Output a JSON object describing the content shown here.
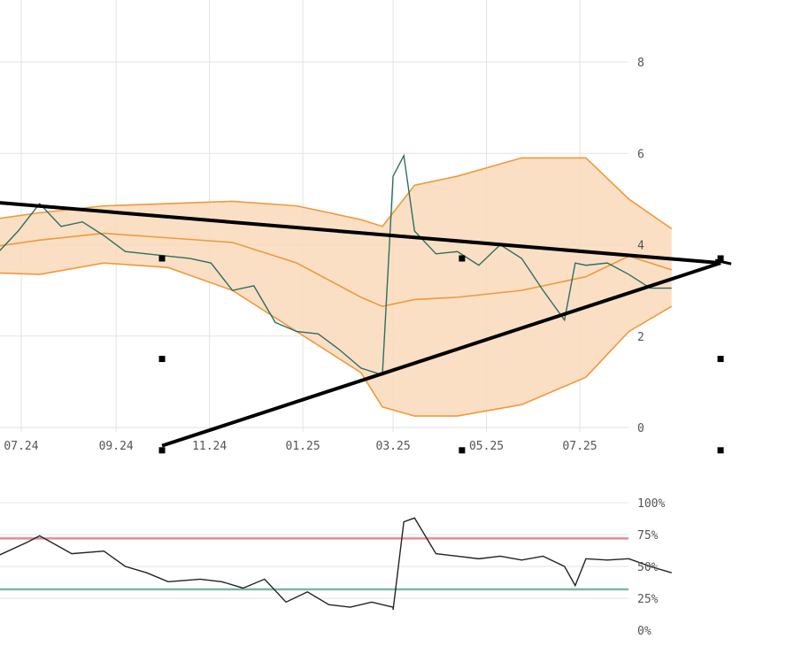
{
  "colors": {
    "grid": "#e3e3e3",
    "band_fill": "#f9d9bb",
    "band_line": "#ee9a3a",
    "price_line": "#2e6e62",
    "trend_line": "#000000",
    "osc_line": "#222222",
    "overbought_line": "#e58c8c",
    "oversold_line": "#7fb7a3",
    "handle": "#000000",
    "axis_text": "#555555"
  },
  "chart_data": [
    {
      "type": "line",
      "x_ticks": [
        "07.24",
        "09.24",
        "11.24",
        "01.25",
        "03.25",
        "05.25",
        "07.25"
      ],
      "y_ticks": [
        0,
        2,
        4,
        6,
        8
      ],
      "ylim": [
        0,
        8.2
      ],
      "grid": true,
      "series": [
        {
          "role": "price",
          "x": [
            "2024-06-01",
            "2024-06-15",
            "2024-06-29",
            "2024-07-13",
            "2024-07-27",
            "2024-08-10",
            "2024-08-24",
            "2024-09-07",
            "2024-09-21",
            "2024-10-05",
            "2024-10-19",
            "2024-11-02",
            "2024-11-16",
            "2024-11-30",
            "2024-12-14",
            "2024-12-28",
            "2025-01-11",
            "2025-01-25",
            "2025-02-08",
            "2025-02-22",
            "2025-03-01",
            "2025-03-08",
            "2025-03-15",
            "2025-03-29",
            "2025-04-12",
            "2025-04-26",
            "2025-05-10",
            "2025-05-24",
            "2025-06-07",
            "2025-06-21",
            "2025-06-28",
            "2025-07-05",
            "2025-07-19",
            "2025-08-02",
            "2025-08-16",
            "2025-08-30"
          ],
          "y": [
            3.7,
            3.8,
            4.3,
            4.9,
            4.4,
            4.5,
            4.2,
            3.85,
            3.8,
            3.75,
            3.7,
            3.6,
            3.0,
            3.1,
            2.3,
            2.1,
            2.05,
            1.7,
            1.3,
            1.15,
            5.5,
            5.95,
            4.3,
            3.8,
            3.85,
            3.55,
            4.0,
            3.7,
            3.0,
            2.35,
            3.6,
            3.55,
            3.6,
            3.35,
            3.05,
            3.05
          ]
        },
        {
          "role": "band-upper",
          "x": [
            "2024-06-01",
            "2024-07-13",
            "2024-08-24",
            "2024-10-05",
            "2024-11-16",
            "2024-12-28",
            "2025-02-08",
            "2025-02-22",
            "2025-03-15",
            "2025-04-12",
            "2025-05-24",
            "2025-07-05",
            "2025-08-02",
            "2025-08-30"
          ],
          "y": [
            4.5,
            4.7,
            4.85,
            4.9,
            4.95,
            4.85,
            4.55,
            4.4,
            5.3,
            5.5,
            5.9,
            5.9,
            5.0,
            4.35
          ]
        },
        {
          "role": "band-mid",
          "x": [
            "2024-06-01",
            "2024-07-13",
            "2024-08-24",
            "2024-10-05",
            "2024-11-16",
            "2024-12-28",
            "2025-02-08",
            "2025-02-22",
            "2025-03-15",
            "2025-04-12",
            "2025-05-24",
            "2025-07-05",
            "2025-08-02",
            "2025-08-30"
          ],
          "y": [
            3.9,
            4.1,
            4.25,
            4.15,
            4.05,
            3.6,
            2.85,
            2.65,
            2.8,
            2.85,
            3.0,
            3.3,
            3.75,
            3.45
          ]
        },
        {
          "role": "band-lower",
          "x": [
            "2024-06-01",
            "2024-07-13",
            "2024-08-24",
            "2024-10-05",
            "2024-11-16",
            "2024-12-28",
            "2025-02-08",
            "2025-02-22",
            "2025-03-15",
            "2025-04-12",
            "2025-05-24",
            "2025-07-05",
            "2025-08-02",
            "2025-08-30"
          ],
          "y": [
            3.4,
            3.35,
            3.6,
            3.5,
            3.0,
            2.1,
            1.2,
            0.45,
            0.25,
            0.25,
            0.5,
            1.1,
            2.1,
            2.65
          ]
        }
      ],
      "trendlines": [
        {
          "from": [
            "2024-05-01",
            5.05
          ],
          "to": [
            "2025-10-01",
            3.6
          ]
        },
        {
          "from": [
            "2024-10-01",
            -0.4
          ],
          "to": [
            "2025-10-01",
            3.6
          ]
        }
      ],
      "handle_points": [
        [
          "2024-10-01",
          3.7
        ],
        [
          "2025-04-15",
          3.7
        ],
        [
          "2025-10-01",
          3.7
        ],
        [
          "2024-10-01",
          1.5
        ],
        [
          "2025-10-01",
          1.5
        ],
        [
          "2024-10-01",
          -0.5
        ],
        [
          "2025-04-15",
          -0.5
        ],
        [
          "2025-10-01",
          -0.5
        ]
      ]
    },
    {
      "type": "line",
      "y_ticks": [
        "100%",
        "75%",
        "50%",
        "25%",
        "0%"
      ],
      "ylim": [
        0,
        100
      ],
      "grid": true,
      "levels": {
        "overbought": 72,
        "oversold": 32
      },
      "series": [
        {
          "role": "oscillator",
          "x": [
            "2024-05-25",
            "2024-06-15",
            "2024-07-05",
            "2024-07-13",
            "2024-08-03",
            "2024-08-24",
            "2024-09-07",
            "2024-09-21",
            "2024-10-05",
            "2024-10-26",
            "2024-11-09",
            "2024-11-23",
            "2024-12-07",
            "2024-12-21",
            "2025-01-04",
            "2025-01-18",
            "2025-02-01",
            "2025-02-15",
            "2025-02-29",
            "2025-03-01",
            "2025-03-08",
            "2025-03-15",
            "2025-03-29",
            "2025-04-12",
            "2025-04-26",
            "2025-05-10",
            "2025-05-24",
            "2025-06-07",
            "2025-06-21",
            "2025-06-28",
            "2025-07-05",
            "2025-07-19",
            "2025-08-02",
            "2025-08-16",
            "2025-08-30"
          ],
          "y": [
            45,
            58,
            69,
            74,
            60,
            62,
            50,
            45,
            38,
            40,
            38,
            33,
            40,
            22,
            30,
            20,
            18,
            22,
            18,
            16,
            85,
            88,
            60,
            58,
            56,
            58,
            55,
            58,
            50,
            35,
            56,
            55,
            56,
            50,
            45
          ]
        }
      ]
    }
  ]
}
